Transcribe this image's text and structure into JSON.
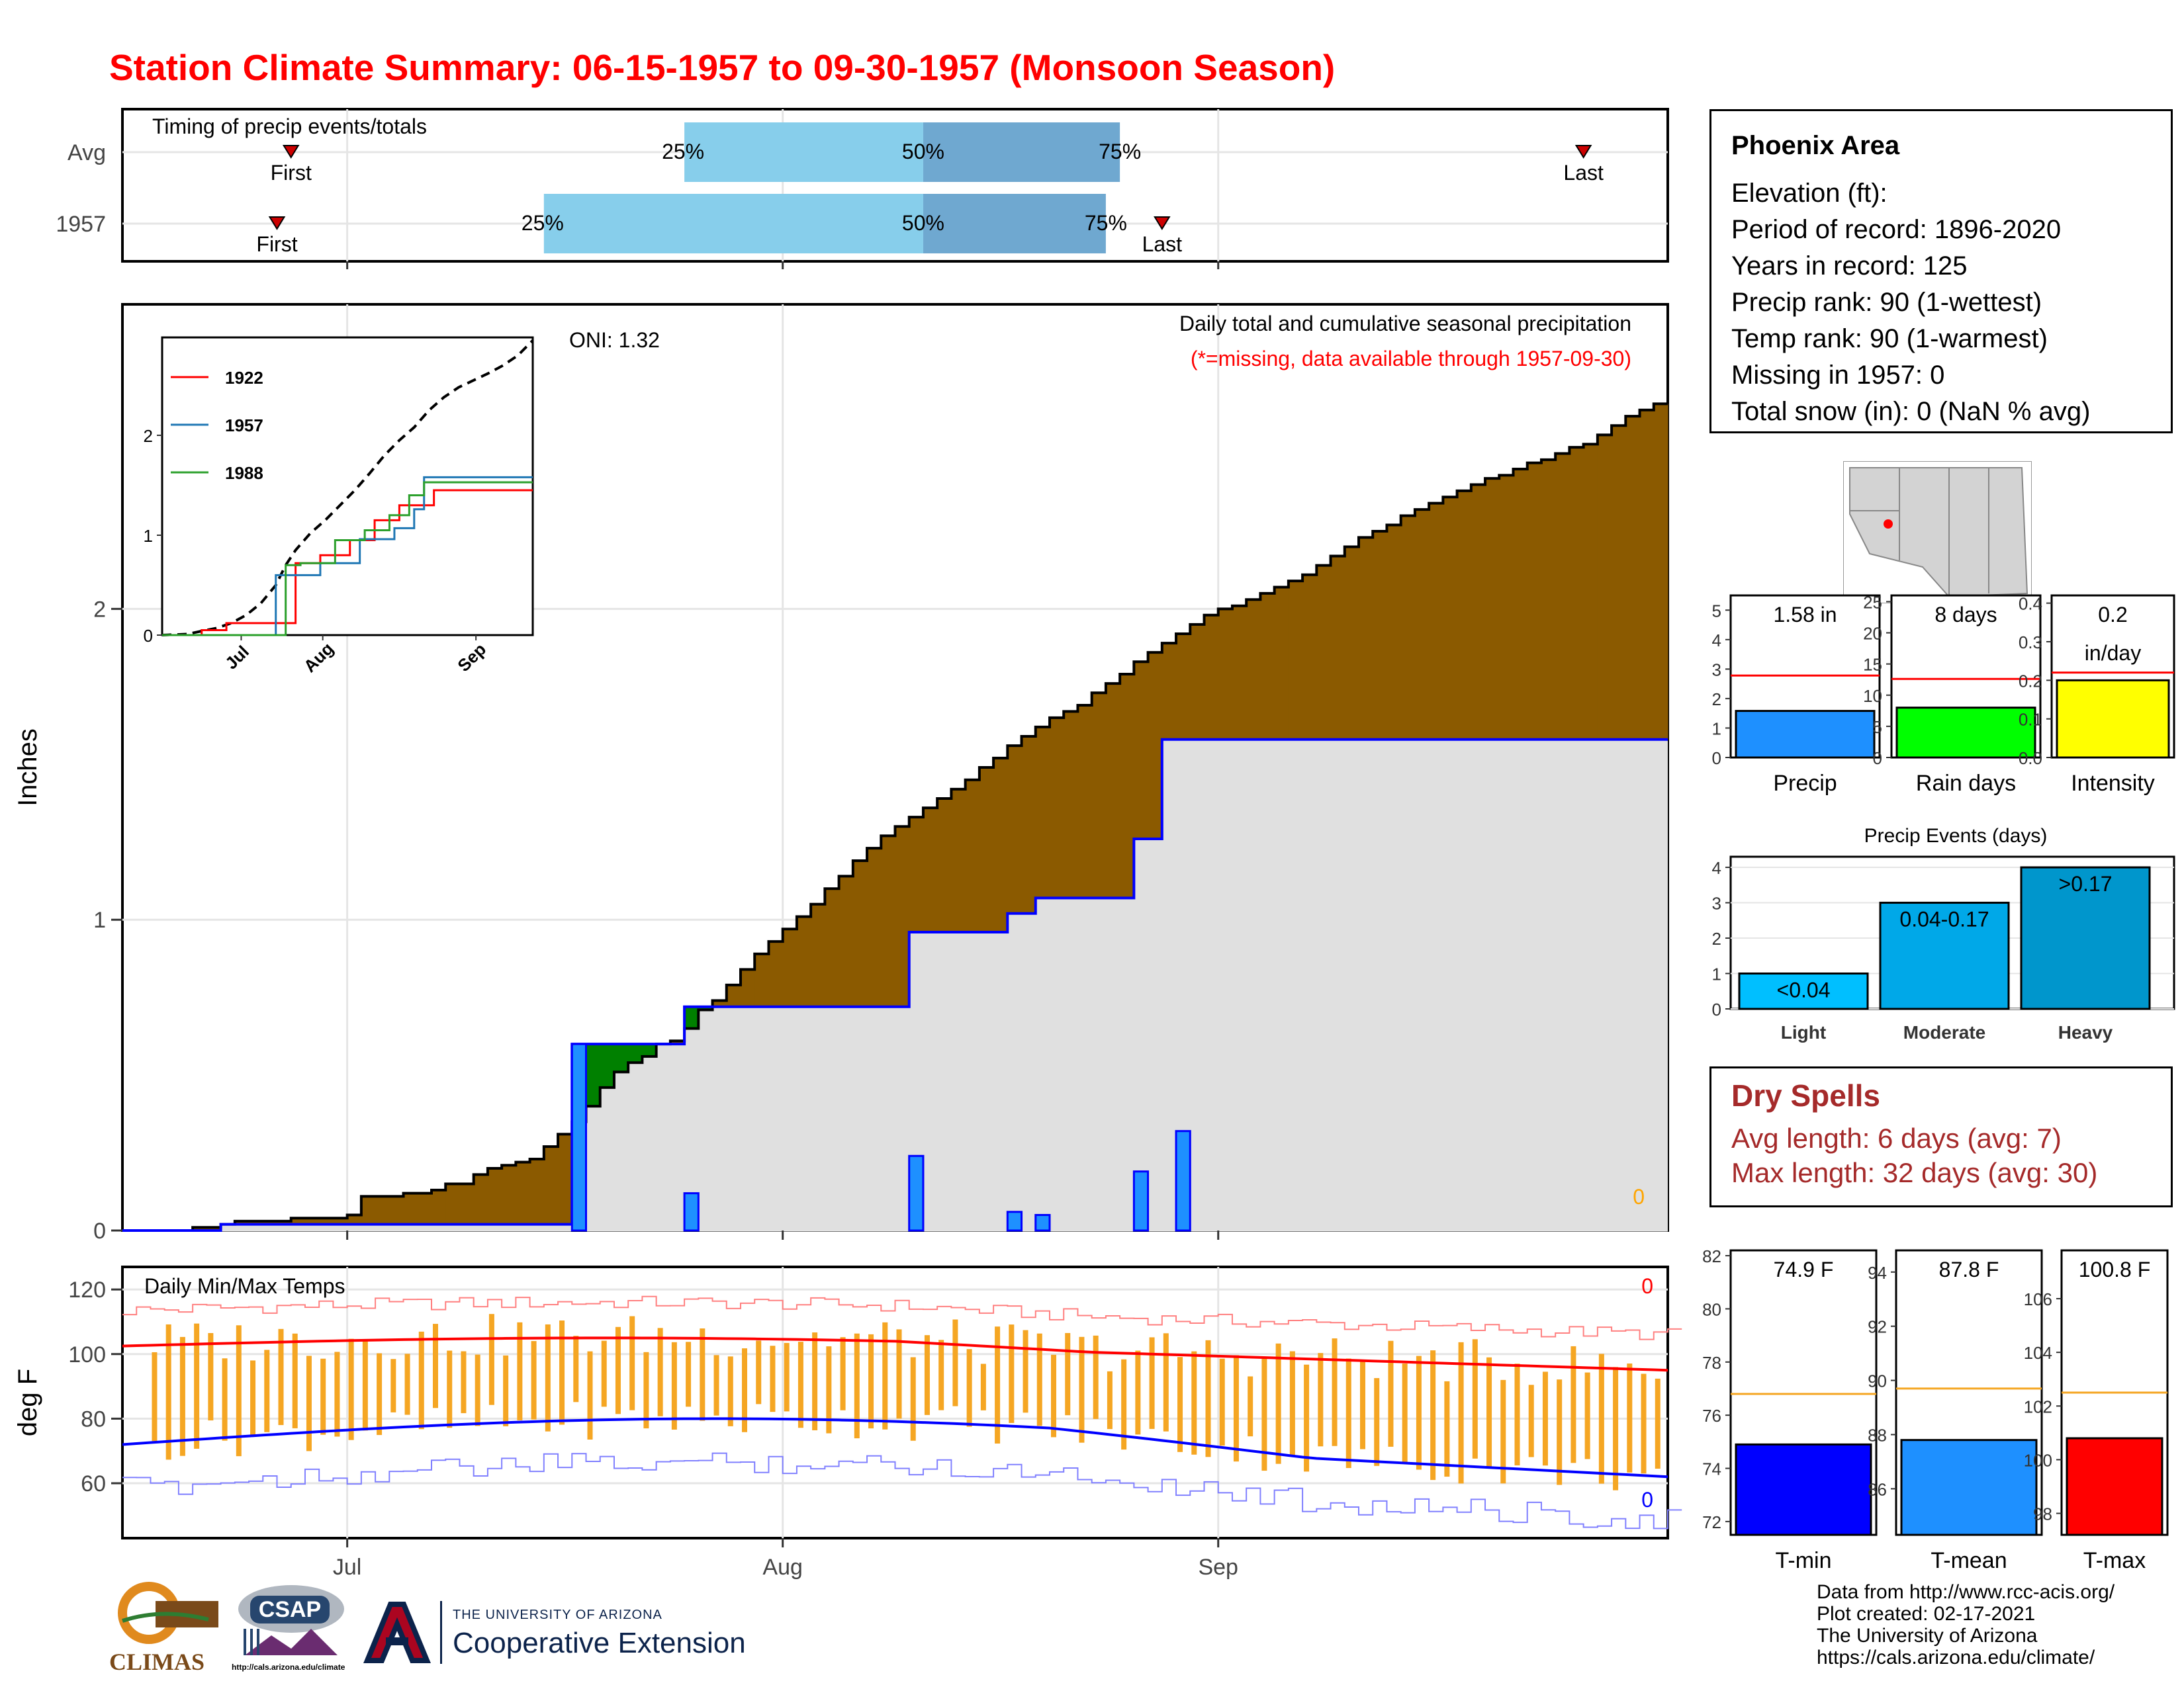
{
  "title": "Station Climate Summary: 06-15-1957 to 09-30-1957 (Monsoon Season)",
  "colors": {
    "title": "#ff0000",
    "brown": "#8b5a00",
    "green": "#008000",
    "blue": "#0000ff",
    "fill_light": "#87ceeb",
    "fill_dark": "#6fa8d0",
    "tmin": "#0000ff",
    "tmean": "#1e90ff",
    "tmax": "#ff0000",
    "orange": "#f5a623",
    "yellow": "#ffff00",
    "lime": "#00ff00",
    "dry": "#a52a2a"
  },
  "station": {
    "name": "Phoenix Area",
    "lines": [
      "Elevation (ft):",
      "Period of record: 1896-2020",
      "Years in record: 125",
      "Precip rank: 90 (1-wettest)",
      "Temp rank: 90 (1-warmest)",
      "Missing in 1957: 0",
      "Total snow (in): 0 (NaN % avg)"
    ]
  },
  "dry_spells": {
    "title": "Dry Spells",
    "avg": "Avg length: 6 days (avg: 7)",
    "max": "Max length: 32 days (avg: 30)"
  },
  "credits": [
    "Data from http://www.rcc-acis.org/",
    "Plot created: 02-17-2021",
    "The University of Arizona",
    "https://cals.arizona.edu/climate/"
  ],
  "logos": {
    "climas": "CLIMAS",
    "csap": "CSAP",
    "csap_url": "http://cals.arizona.edu/climate",
    "ua_line1": "THE UNIVERSITY OF ARIZONA",
    "ua_line2": "Cooperative Extension",
    "ua_letter": "A"
  },
  "chart_data": [
    {
      "type": "timing",
      "title": "Timing of precip events/totals",
      "rows": [
        {
          "label": "Avg",
          "first": "06-27",
          "q25": "07-25",
          "q50": "08-11",
          "q75": "08-25",
          "last": "09-27"
        },
        {
          "label": "1957",
          "first": "06-26",
          "q25": "07-15",
          "q50": "08-11",
          "q75": "08-24",
          "last": "08-28"
        }
      ],
      "marker_labels": {
        "first": "First",
        "last": "Last",
        "q25": "25%",
        "q50": "50%",
        "q75": "75%"
      }
    },
    {
      "type": "area",
      "title": "Daily total and cumulative seasonal precipitation",
      "subtitle": "(*=missing, data available through 1957-09-30)",
      "annotation": "ONI: 1.32",
      "ylabel": "Inches",
      "ylim": [
        0,
        2.98
      ],
      "yticks": [
        0,
        1,
        2
      ],
      "xticks": [
        "Jul",
        "Aug",
        "Sep"
      ],
      "missing_count": "0",
      "avg_cumulative": [
        [
          0,
          0
        ],
        [
          5,
          0.01
        ],
        [
          7,
          0.02
        ],
        [
          8,
          0.03
        ],
        [
          10,
          0.03
        ],
        [
          12,
          0.04
        ],
        [
          15,
          0.04
        ],
        [
          16,
          0.05
        ],
        [
          17,
          0.11
        ],
        [
          20,
          0.12
        ],
        [
          22,
          0.13
        ],
        [
          23,
          0.15
        ],
        [
          25,
          0.18
        ],
        [
          26,
          0.2
        ],
        [
          27,
          0.21
        ],
        [
          28,
          0.22
        ],
        [
          29,
          0.23
        ],
        [
          30,
          0.27
        ],
        [
          31,
          0.31
        ],
        [
          32,
          0.35
        ],
        [
          33,
          0.4
        ],
        [
          34,
          0.46
        ],
        [
          35,
          0.51
        ],
        [
          36,
          0.54
        ],
        [
          37,
          0.56
        ],
        [
          38,
          0.6
        ],
        [
          39,
          0.61
        ],
        [
          40,
          0.65
        ],
        [
          41,
          0.71
        ],
        [
          42,
          0.74
        ],
        [
          43,
          0.79
        ],
        [
          44,
          0.84
        ],
        [
          45,
          0.89
        ],
        [
          46,
          0.93
        ],
        [
          47,
          0.97
        ],
        [
          48,
          1.01
        ],
        [
          49,
          1.05
        ],
        [
          50,
          1.1
        ],
        [
          51,
          1.14
        ],
        [
          52,
          1.19
        ],
        [
          53,
          1.23
        ],
        [
          54,
          1.27
        ],
        [
          55,
          1.3
        ],
        [
          56,
          1.33
        ],
        [
          57,
          1.36
        ],
        [
          58,
          1.39
        ],
        [
          59,
          1.42
        ],
        [
          60,
          1.45
        ],
        [
          61,
          1.49
        ],
        [
          62,
          1.52
        ],
        [
          63,
          1.56
        ],
        [
          64,
          1.59
        ],
        [
          65,
          1.62
        ],
        [
          66,
          1.65
        ],
        [
          67,
          1.67
        ],
        [
          68,
          1.69
        ],
        [
          69,
          1.73
        ],
        [
          70,
          1.76
        ],
        [
          71,
          1.79
        ],
        [
          72,
          1.83
        ],
        [
          73,
          1.86
        ],
        [
          74,
          1.89
        ],
        [
          75,
          1.92
        ],
        [
          76,
          1.95
        ],
        [
          77,
          1.98
        ],
        [
          78,
          2.0
        ],
        [
          79,
          2.01
        ],
        [
          80,
          2.03
        ],
        [
          81,
          2.05
        ],
        [
          82,
          2.07
        ],
        [
          83,
          2.09
        ],
        [
          84,
          2.11
        ],
        [
          85,
          2.14
        ],
        [
          86,
          2.17
        ],
        [
          87,
          2.2
        ],
        [
          88,
          2.23
        ],
        [
          89,
          2.25
        ],
        [
          90,
          2.27
        ],
        [
          91,
          2.3
        ],
        [
          92,
          2.32
        ],
        [
          93,
          2.34
        ],
        [
          94,
          2.36
        ],
        [
          95,
          2.38
        ],
        [
          96,
          2.4
        ],
        [
          97,
          2.42
        ],
        [
          98,
          2.43
        ],
        [
          99,
          2.45
        ],
        [
          100,
          2.47
        ],
        [
          101,
          2.48
        ],
        [
          102,
          2.5
        ],
        [
          103,
          2.52
        ],
        [
          104,
          2.53
        ],
        [
          105,
          2.56
        ],
        [
          106,
          2.59
        ],
        [
          107,
          2.62
        ],
        [
          108,
          2.64
        ],
        [
          109,
          2.66
        ],
        [
          110,
          2.66
        ]
      ],
      "obs_cumulative": [
        [
          0,
          0
        ],
        [
          7,
          0.02
        ],
        [
          10,
          0.02
        ],
        [
          22,
          0.02
        ],
        [
          32,
          0.6
        ],
        [
          40,
          0.6
        ],
        [
          40,
          0.72
        ],
        [
          56,
          0.72
        ],
        [
          56,
          0.96
        ],
        [
          63,
          0.96
        ],
        [
          63,
          1.02
        ],
        [
          65,
          1.02
        ],
        [
          65,
          1.07
        ],
        [
          72,
          1.07
        ],
        [
          72,
          1.26
        ],
        [
          74,
          1.26
        ],
        [
          74,
          1.58
        ],
        [
          110,
          1.58
        ]
      ],
      "daily_bars": [
        {
          "day": 32,
          "value": 0.6
        },
        {
          "day": 40,
          "value": 0.12
        },
        {
          "day": 56,
          "value": 0.24
        },
        {
          "day": 63,
          "value": 0.06
        },
        {
          "day": 65,
          "value": 0.05
        },
        {
          "day": 72,
          "value": 0.19
        },
        {
          "day": 75,
          "value": 0.32
        }
      ],
      "inset": {
        "yticks": [
          0,
          1,
          2
        ],
        "xticks": [
          "Jul",
          "Aug",
          "Sep"
        ],
        "series": [
          {
            "name": "1922",
            "color": "#ff0000",
            "values": [
              [
                0,
                0
              ],
              [
                8,
                0.05
              ],
              [
                13,
                0.12
              ],
              [
                25,
                0.12
              ],
              [
                27,
                0.72
              ],
              [
                30,
                0.72
              ],
              [
                32,
                0.8
              ],
              [
                35,
                0.8
              ],
              [
                38,
                0.95
              ],
              [
                41,
                0.95
              ],
              [
                43,
                1.15
              ],
              [
                47,
                1.15
              ],
              [
                48,
                1.3
              ],
              [
                52,
                1.3
              ],
              [
                55,
                1.45
              ],
              [
                75,
                1.45
              ]
            ]
          },
          {
            "name": "1957",
            "color": "#1f77b4",
            "values": [
              [
                0,
                0
              ],
              [
                20,
                0
              ],
              [
                23,
                0.6
              ],
              [
                32,
                0.6
              ],
              [
                32,
                0.72
              ],
              [
                40,
                0.72
              ],
              [
                40,
                0.96
              ],
              [
                45,
                0.96
              ],
              [
                47,
                1.07
              ],
              [
                51,
                1.07
              ],
              [
                51,
                1.26
              ],
              [
                52,
                1.26
              ],
              [
                53,
                1.58
              ],
              [
                75,
                1.58
              ]
            ]
          },
          {
            "name": "1988",
            "color": "#2ca02c",
            "values": [
              [
                0,
                0
              ],
              [
                24,
                0
              ],
              [
                25,
                0.7
              ],
              [
                28,
                0.72
              ],
              [
                35,
                0.95
              ],
              [
                40,
                0.95
              ],
              [
                41,
                1.05
              ],
              [
                44,
                1.05
              ],
              [
                46,
                1.2
              ],
              [
                49,
                1.2
              ],
              [
                50,
                1.4
              ],
              [
                52,
                1.4
              ],
              [
                53,
                1.53
              ],
              [
                75,
                1.53
              ]
            ]
          }
        ],
        "avg": [
          [
            0,
            0
          ],
          [
            5,
            0.01
          ],
          [
            8,
            0.04
          ],
          [
            11,
            0.07
          ],
          [
            14,
            0.12
          ],
          [
            17,
            0.2
          ],
          [
            20,
            0.32
          ],
          [
            23,
            0.5
          ],
          [
            25,
            0.7
          ],
          [
            27,
            0.85
          ],
          [
            30,
            1.02
          ],
          [
            33,
            1.15
          ],
          [
            36,
            1.3
          ],
          [
            39,
            1.45
          ],
          [
            42,
            1.62
          ],
          [
            45,
            1.8
          ],
          [
            48,
            1.95
          ],
          [
            51,
            2.08
          ],
          [
            54,
            2.25
          ],
          [
            57,
            2.38
          ],
          [
            60,
            2.48
          ],
          [
            63,
            2.55
          ],
          [
            66,
            2.62
          ],
          [
            69,
            2.7
          ],
          [
            72,
            2.8
          ],
          [
            75,
            2.95
          ]
        ],
        "ylim": [
          0,
          2.98
        ]
      }
    },
    {
      "type": "bar",
      "panel": "Precip",
      "value_label": "1.58 in",
      "value": 1.58,
      "avg": 2.78,
      "ylim": [
        0,
        5.5
      ],
      "yticks": [
        0,
        1,
        2,
        3,
        4,
        5
      ],
      "xlabel": "Precip"
    },
    {
      "type": "bar",
      "panel": "Rain days",
      "value_label": "8 days",
      "value": 8,
      "avg": 12.6,
      "ylim": [
        0,
        26
      ],
      "yticks": [
        0,
        5,
        10,
        15,
        20,
        25
      ],
      "xlabel": "Rain days"
    },
    {
      "type": "bar",
      "panel": "Intensity",
      "value_label": [
        "0.2",
        "in/day"
      ],
      "value": 0.2,
      "avg": 0.22,
      "ylim": [
        0,
        0.42
      ],
      "yticks": [
        "0.0",
        "0.1",
        "0.2",
        "0.3",
        "0.4"
      ],
      "xlabel": "Intensity"
    },
    {
      "type": "bar",
      "title": "Precip Events (days)",
      "categories": [
        "Light",
        "Moderate",
        "Heavy"
      ],
      "labels": [
        "<0.04",
        "0.04-0.17",
        ">0.17"
      ],
      "values": [
        1,
        3,
        4
      ],
      "ylim": [
        0,
        4.3
      ],
      "yticks": [
        0,
        1,
        2,
        3,
        4
      ]
    },
    {
      "type": "line",
      "title": "Daily Min/Max Temps",
      "ylabel": "deg F",
      "ylim": [
        43,
        127
      ],
      "yticks": [
        60,
        80,
        100,
        120
      ],
      "xticks": [
        "Jul",
        "Aug",
        "Sep"
      ],
      "missing_top": "0",
      "missing_bottom": "0"
    },
    {
      "type": "bar",
      "panel": "T-min",
      "value_label": "74.9 F",
      "value": 74.9,
      "avg": 76.8,
      "ylim": [
        71.5,
        82.2
      ],
      "yticks": [
        72,
        74,
        76,
        78,
        80,
        82
      ],
      "xlabel": "T-min"
    },
    {
      "type": "bar",
      "panel": "T-mean",
      "value_label": "87.8 F",
      "value": 87.8,
      "avg": 89.7,
      "ylim": [
        84.3,
        94.8
      ],
      "yticks": [
        86,
        88,
        90,
        92,
        94
      ],
      "xlabel": "T-mean"
    },
    {
      "type": "bar",
      "panel": "T-max",
      "value_label": "100.8 F",
      "value": 100.8,
      "avg": 102.5,
      "ylim": [
        97.2,
        107.8
      ],
      "yticks": [
        98,
        100,
        102,
        104,
        106
      ],
      "xlabel": "T-max"
    }
  ]
}
